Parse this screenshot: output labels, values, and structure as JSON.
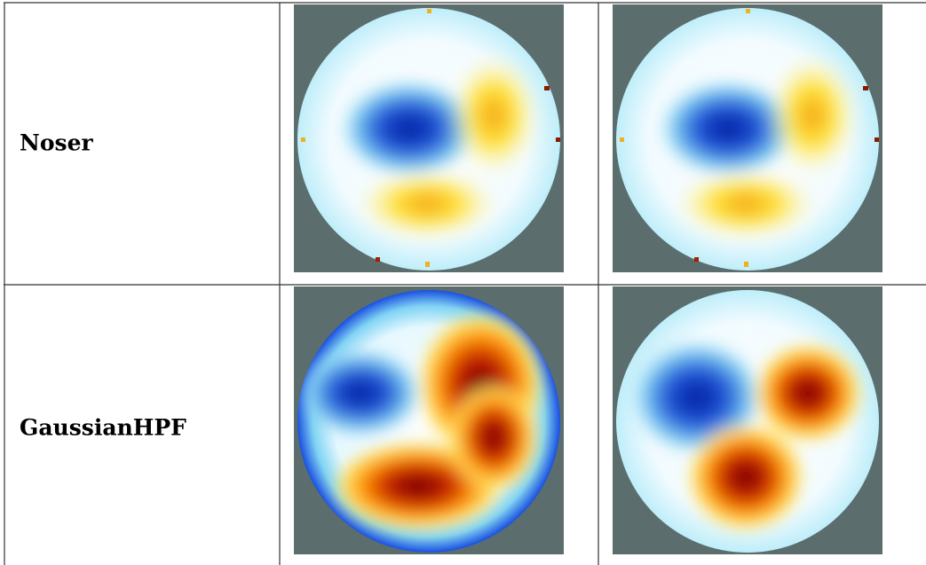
{
  "table": {
    "rows": [
      {
        "label": "Noser"
      },
      {
        "label": "GaussianHPF"
      }
    ]
  }
}
